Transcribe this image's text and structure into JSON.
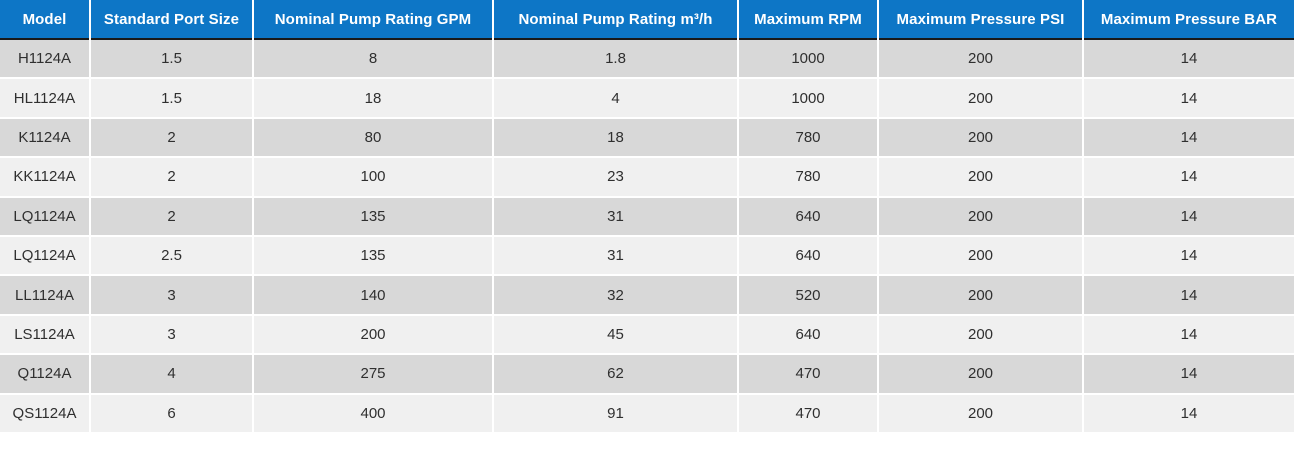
{
  "colors": {
    "header_bg": "#0d76c6",
    "header_text": "#ffffff",
    "header_divider": "#191919",
    "row_dark": "#d8d8d8",
    "row_light": "#f0f0f0",
    "grid": "#ffffff",
    "body_text": "#2f2f2f"
  },
  "table": {
    "columns": [
      {
        "key": "model",
        "label": "Model"
      },
      {
        "key": "standard-port-size",
        "label": "Standard Port Size"
      },
      {
        "key": "nominal-pump-rating-gpm",
        "label": "Nominal Pump Rating GPM"
      },
      {
        "key": "nominal-pump-rating-m3h",
        "label": "Nominal Pump Rating m³/h"
      },
      {
        "key": "maximum-rpm",
        "label": "Maximum RPM"
      },
      {
        "key": "maximum-pressure-psi",
        "label": "Maximum Pressure PSI"
      },
      {
        "key": "maximum-pressure-bar",
        "label": "Maximum Pressure BAR"
      }
    ],
    "rows": [
      [
        "H1124A",
        "1.5",
        "8",
        "1.8",
        "1000",
        "200",
        "14"
      ],
      [
        "HL1124A",
        "1.5",
        "18",
        "4",
        "1000",
        "200",
        "14"
      ],
      [
        "K1124A",
        "2",
        "80",
        "18",
        "780",
        "200",
        "14"
      ],
      [
        "KK1124A",
        "2",
        "100",
        "23",
        "780",
        "200",
        "14"
      ],
      [
        "LQ1124A",
        "2",
        "135",
        "31",
        "640",
        "200",
        "14"
      ],
      [
        "LQ1124A",
        "2.5",
        "135",
        "31",
        "640",
        "200",
        "14"
      ],
      [
        "LL1124A",
        "3",
        "140",
        "32",
        "520",
        "200",
        "14"
      ],
      [
        "LS1124A",
        "3",
        "200",
        "45",
        "640",
        "200",
        "14"
      ],
      [
        "Q1124A",
        "4",
        "275",
        "62",
        "470",
        "200",
        "14"
      ],
      [
        "QS1124A",
        "6",
        "400",
        "91",
        "470",
        "200",
        "14"
      ]
    ]
  }
}
